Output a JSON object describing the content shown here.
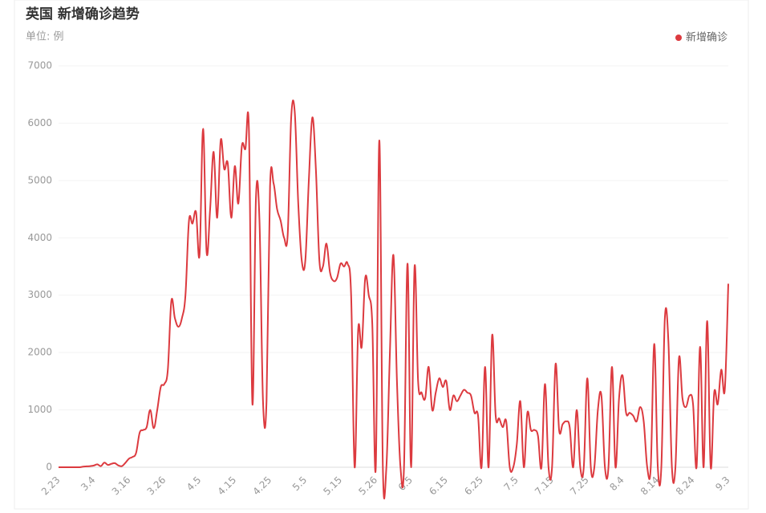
{
  "chart_data": {
    "type": "line",
    "title": "英国 新增确诊趋势",
    "subtitle": "单位: 例",
    "categories": [
      "2.23",
      null,
      null,
      null,
      null,
      null,
      null,
      null,
      null,
      null,
      "3.4",
      null,
      null,
      null,
      null,
      null,
      null,
      null,
      null,
      null,
      "3.16",
      null,
      null,
      null,
      null,
      null,
      null,
      null,
      null,
      null,
      "3.26",
      null,
      null,
      null,
      null,
      null,
      null,
      null,
      null,
      null,
      "4.5",
      null,
      null,
      null,
      null,
      null,
      null,
      null,
      null,
      null,
      "4.15",
      null,
      null,
      null,
      null,
      null,
      null,
      null,
      null,
      null,
      "4.25",
      null,
      null,
      null,
      null,
      null,
      null,
      null,
      null,
      null,
      "5.5",
      null,
      null,
      null,
      null,
      null,
      null,
      null,
      null,
      null,
      "5.15",
      null,
      null,
      null,
      null,
      null,
      null,
      null,
      null,
      null,
      "5.26",
      null,
      null,
      null,
      null,
      null,
      null,
      null,
      null,
      null,
      "6.5",
      null,
      null,
      null,
      null,
      null,
      null,
      null,
      null,
      null,
      "6.15",
      null,
      null,
      null,
      null,
      null,
      null,
      null,
      null,
      null,
      "6.25",
      null,
      null,
      null,
      null,
      null,
      null,
      null,
      null,
      null,
      "7.5",
      null,
      null,
      null,
      null,
      null,
      null,
      null,
      null,
      null,
      "7.15",
      null,
      null,
      null,
      null,
      null,
      null,
      null,
      null,
      null,
      "7.25",
      null,
      null,
      null,
      null,
      null,
      null,
      null,
      null,
      null,
      "8.4",
      null,
      null,
      null,
      null,
      null,
      null,
      null,
      null,
      null,
      "8.14",
      null,
      null,
      null,
      null,
      null,
      null,
      null,
      null,
      null,
      "8.24",
      null,
      null,
      null,
      null,
      null,
      null,
      null,
      null,
      null,
      "9.3"
    ],
    "series": [
      {
        "name": "新增确诊",
        "color": "#dc3a3f",
        "values": [
          0,
          0,
          0,
          0,
          0,
          0,
          0,
          10,
          15,
          20,
          30,
          50,
          20,
          80,
          40,
          60,
          70,
          30,
          20,
          80,
          150,
          180,
          250,
          600,
          650,
          700,
          1000,
          680,
          1000,
          1400,
          1450,
          1700,
          2900,
          2600,
          2450,
          2600,
          3000,
          4300,
          4250,
          4450,
          3700,
          5900,
          3750,
          4500,
          5500,
          4350,
          5700,
          5200,
          5300,
          4350,
          5250,
          4600,
          5600,
          5550,
          5900,
          1100,
          4700,
          4300,
          1150,
          1150,
          4900,
          4950,
          4500,
          4300,
          4000,
          4050,
          6100,
          6200,
          4600,
          3600,
          3600,
          5000,
          6100,
          5200,
          3600,
          3500,
          3900,
          3400,
          3250,
          3300,
          3550,
          3500,
          3550,
          3000,
          0,
          2400,
          2100,
          3300,
          3000,
          2500,
          0,
          5700,
          0,
          0,
          2000,
          3700,
          1500,
          0,
          0,
          3550,
          0,
          3500,
          1500,
          1300,
          1200,
          1750,
          1000,
          1300,
          1550,
          1400,
          1500,
          1000,
          1250,
          1150,
          1250,
          1350,
          1300,
          1250,
          950,
          900,
          0,
          1750,
          0,
          2300,
          900,
          850,
          700,
          800,
          0,
          0,
          400,
          1150,
          0,
          950,
          650,
          650,
          550,
          0,
          1450,
          0,
          0,
          1800,
          650,
          750,
          800,
          700,
          0,
          1000,
          0,
          0,
          1550,
          0,
          0,
          1000,
          1250,
          0,
          0,
          1750,
          0,
          1200,
          1600,
          950,
          950,
          900,
          800,
          1050,
          800,
          0,
          0,
          2150,
          0,
          0,
          2600,
          2200,
          0,
          0,
          1900,
          1200,
          1050,
          1250,
          1100,
          0,
          2100,
          0,
          2550,
          0,
          1300,
          1100,
          1700,
          1350,
          3200
        ]
      }
    ],
    "ylim": [
      0,
      7000
    ],
    "yticks": [
      0,
      1000,
      2000,
      3000,
      4000,
      5000,
      6000,
      7000
    ],
    "grid": true,
    "legend": "top-right"
  }
}
